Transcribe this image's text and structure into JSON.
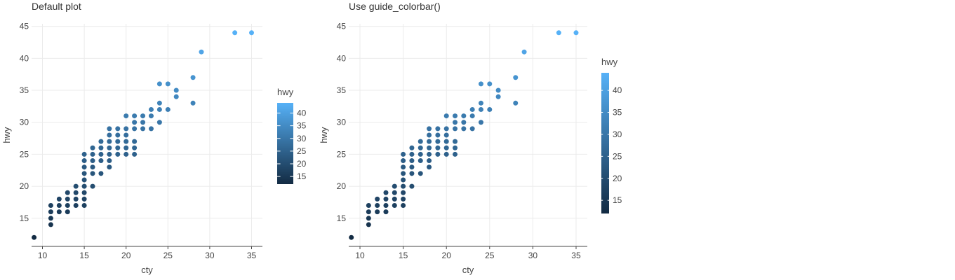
{
  "chart_data": [
    {
      "type": "scatter",
      "title": "Default plot",
      "xlabel": "cty",
      "ylabel": "hwy",
      "xlim": [
        8.7,
        36.3
      ],
      "ylim": [
        10.6,
        45.4
      ],
      "xticks": [
        10,
        15,
        20,
        25,
        30,
        35
      ],
      "yticks": [
        15,
        20,
        25,
        30,
        35,
        40,
        45
      ],
      "grid": true,
      "legend": {
        "title": "hwy",
        "type": "colorbar",
        "placement": "right",
        "ticks": [
          15,
          20,
          25,
          30,
          35,
          40
        ],
        "range": [
          12,
          44
        ],
        "color_low": "#132b43",
        "color_high": "#56b1f7"
      }
    },
    {
      "type": "scatter",
      "title": "Use guide_colorbar()",
      "xlabel": "cty",
      "ylabel": "hwy",
      "xlim": [
        8.7,
        36.3
      ],
      "ylim": [
        10.6,
        45.4
      ],
      "xticks": [
        10,
        15,
        20,
        25,
        30,
        35
      ],
      "yticks": [
        15,
        20,
        25,
        30,
        35,
        40,
        45
      ],
      "grid": true,
      "legend": {
        "title": "hwy",
        "type": "colorbar",
        "placement": "right",
        "ticks": [
          15,
          20,
          25,
          30,
          35,
          40
        ],
        "range": [
          12,
          44
        ],
        "color_low": "#132b43",
        "color_high": "#56b1f7"
      }
    }
  ],
  "points": [
    [
      9,
      12
    ],
    [
      11,
      14
    ],
    [
      11,
      15
    ],
    [
      11,
      16
    ],
    [
      11,
      17
    ],
    [
      12,
      16
    ],
    [
      12,
      17
    ],
    [
      12,
      18
    ],
    [
      13,
      16
    ],
    [
      13,
      17
    ],
    [
      13,
      18
    ],
    [
      13,
      19
    ],
    [
      14,
      17
    ],
    [
      14,
      18
    ],
    [
      14,
      19
    ],
    [
      14,
      20
    ],
    [
      15,
      17
    ],
    [
      15,
      18
    ],
    [
      15,
      19
    ],
    [
      15,
      20
    ],
    [
      15,
      21
    ],
    [
      15,
      22
    ],
    [
      15,
      23
    ],
    [
      15,
      24
    ],
    [
      15,
      25
    ],
    [
      16,
      20
    ],
    [
      16,
      22
    ],
    [
      16,
      23
    ],
    [
      16,
      24
    ],
    [
      16,
      25
    ],
    [
      16,
      26
    ],
    [
      17,
      22
    ],
    [
      17,
      24
    ],
    [
      17,
      25
    ],
    [
      17,
      26
    ],
    [
      17,
      27
    ],
    [
      18,
      23
    ],
    [
      18,
      24
    ],
    [
      18,
      25
    ],
    [
      18,
      26
    ],
    [
      18,
      27
    ],
    [
      18,
      28
    ],
    [
      18,
      29
    ],
    [
      19,
      25
    ],
    [
      19,
      26
    ],
    [
      19,
      27
    ],
    [
      19,
      28
    ],
    [
      19,
      29
    ],
    [
      20,
      25
    ],
    [
      20,
      26
    ],
    [
      20,
      27
    ],
    [
      20,
      28
    ],
    [
      20,
      29
    ],
    [
      20,
      31
    ],
    [
      21,
      25
    ],
    [
      21,
      26
    ],
    [
      21,
      27
    ],
    [
      21,
      29
    ],
    [
      21,
      30
    ],
    [
      21,
      31
    ],
    [
      22,
      29
    ],
    [
      22,
      30
    ],
    [
      22,
      31
    ],
    [
      23,
      29
    ],
    [
      23,
      31
    ],
    [
      23,
      32
    ],
    [
      24,
      30
    ],
    [
      24,
      32
    ],
    [
      24,
      33
    ],
    [
      24,
      36
    ],
    [
      25,
      32
    ],
    [
      25,
      36
    ],
    [
      26,
      34
    ],
    [
      26,
      35
    ],
    [
      28,
      33
    ],
    [
      28,
      37
    ],
    [
      29,
      41
    ],
    [
      33,
      44
    ],
    [
      35,
      44
    ]
  ]
}
